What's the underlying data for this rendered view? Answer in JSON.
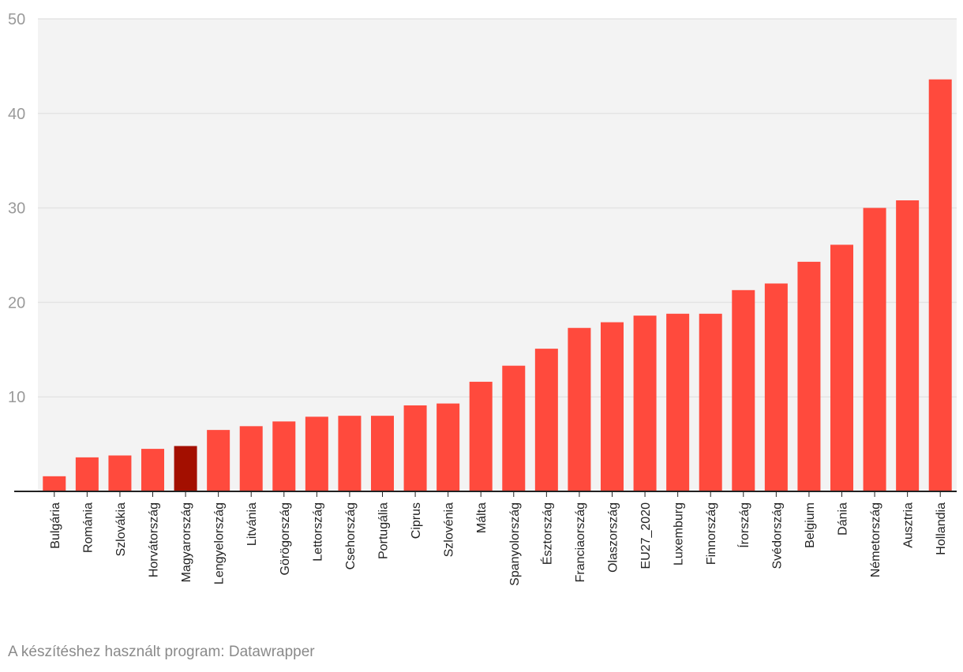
{
  "chart_data": {
    "type": "bar",
    "title": "",
    "xlabel": "",
    "ylabel": "",
    "ylim": [
      0,
      50
    ],
    "yticks": [
      10,
      20,
      30,
      40,
      50
    ],
    "grid": true,
    "categories": [
      "Bulgária",
      "Románia",
      "Szlovákia",
      "Horvátország",
      "Magyarország",
      "Lengyelország",
      "Litvánia",
      "Görögország",
      "Lettország",
      "Csehország",
      "Portugália",
      "Ciprus",
      "Szlovénia",
      "Málta",
      "Spanyolország",
      "Észtország",
      "Franciaország",
      "Olaszország",
      "EU27_2020",
      "Luxemburg",
      "Finnország",
      "Írország",
      "Svédország",
      "Belgium",
      "Dánia",
      "Németország",
      "Ausztria",
      "Hollandia"
    ],
    "values": [
      1.6,
      3.6,
      3.8,
      4.5,
      4.8,
      6.5,
      6.9,
      7.4,
      7.9,
      8.0,
      8.0,
      9.1,
      9.3,
      11.6,
      13.3,
      15.1,
      17.3,
      17.9,
      18.6,
      18.8,
      18.8,
      21.3,
      22.0,
      24.3,
      26.1,
      30.0,
      30.8,
      43.6
    ],
    "highlight": "Magyarország"
  },
  "colors": {
    "bar": "#ff4a3d",
    "highlight": "#a30f00",
    "plot_background": "#f3f3f3",
    "grid": "#e4e4e4",
    "axis": "#222222"
  },
  "footer": {
    "credit": "A készítéshez használt program: Datawrapper"
  }
}
